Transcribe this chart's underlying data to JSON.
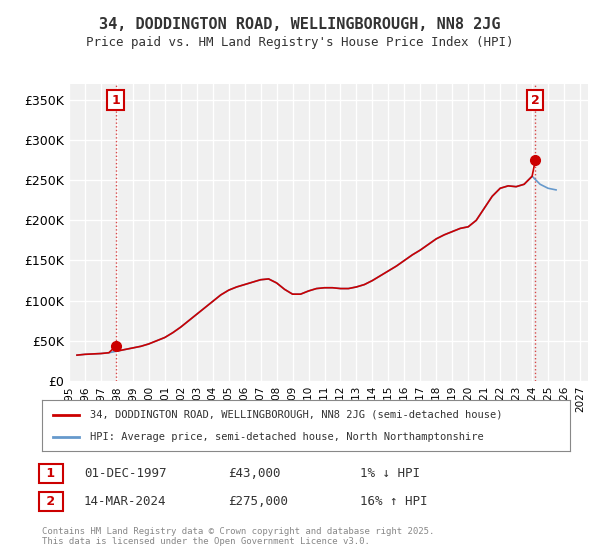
{
  "title_line1": "34, DODDINGTON ROAD, WELLINGBOROUGH, NN8 2JG",
  "title_line2": "Price paid vs. HM Land Registry's House Price Index (HPI)",
  "bg_color": "#ffffff",
  "plot_bg_color": "#f0f0f0",
  "grid_color": "#ffffff",
  "ylim": [
    0,
    370000
  ],
  "yticks": [
    0,
    50000,
    100000,
    150000,
    200000,
    250000,
    300000,
    350000
  ],
  "ytick_labels": [
    "£0",
    "£50K",
    "£100K",
    "£150K",
    "£200K",
    "£250K",
    "£300K",
    "£350K"
  ],
  "xlim_start": 1995.5,
  "xlim_end": 2027.5,
  "xticks": [
    1995,
    1996,
    1997,
    1998,
    1999,
    2000,
    2001,
    2002,
    2003,
    2004,
    2005,
    2006,
    2007,
    2008,
    2009,
    2010,
    2011,
    2012,
    2013,
    2014,
    2015,
    2016,
    2017,
    2018,
    2019,
    2020,
    2021,
    2022,
    2023,
    2024,
    2025,
    2026,
    2027
  ],
  "legend_label1": "34, DODDINGTON ROAD, WELLINGBOROUGH, NN8 2JG (semi-detached house)",
  "legend_label2": "HPI: Average price, semi-detached house, North Northamptonshire",
  "sale1_x": 1997.917,
  "sale1_y": 43000,
  "sale1_label": "1",
  "sale2_x": 2024.2,
  "sale2_y": 275000,
  "sale2_label": "2",
  "annotation1_date": "01-DEC-1997",
  "annotation1_price": "£43,000",
  "annotation1_hpi": "1% ↓ HPI",
  "annotation2_date": "14-MAR-2024",
  "annotation2_price": "£275,000",
  "annotation2_hpi": "16% ↑ HPI",
  "footer": "Contains HM Land Registry data © Crown copyright and database right 2025.\nThis data is licensed under the Open Government Licence v3.0.",
  "line_color_sale": "#cc0000",
  "line_color_hpi": "#6699cc",
  "marker_color": "#cc0000",
  "hpi_data_x": [
    1995.5,
    1996,
    1996.5,
    1997,
    1997.5,
    1998,
    1998.5,
    1999,
    1999.5,
    2000,
    2000.5,
    2001,
    2001.5,
    2002,
    2002.5,
    2003,
    2003.5,
    2004,
    2004.5,
    2005,
    2005.5,
    2006,
    2006.5,
    2007,
    2007.5,
    2008,
    2008.5,
    2009,
    2009.5,
    2010,
    2010.5,
    2011,
    2011.5,
    2012,
    2012.5,
    2013,
    2013.5,
    2014,
    2014.5,
    2015,
    2015.5,
    2016,
    2016.5,
    2017,
    2017.5,
    2018,
    2018.5,
    2019,
    2019.5,
    2020,
    2020.5,
    2021,
    2021.5,
    2022,
    2022.5,
    2023,
    2023.5,
    2024,
    2024.5,
    2025,
    2025.5
  ],
  "hpi_data_y": [
    32000,
    33000,
    33500,
    34000,
    35000,
    37000,
    39000,
    41000,
    43000,
    46000,
    50000,
    54000,
    60000,
    67000,
    75000,
    83000,
    91000,
    99000,
    107000,
    113000,
    117000,
    120000,
    123000,
    126000,
    127000,
    122000,
    114000,
    108000,
    108000,
    112000,
    115000,
    116000,
    116000,
    115000,
    115000,
    117000,
    120000,
    125000,
    131000,
    137000,
    143000,
    150000,
    157000,
    163000,
    170000,
    177000,
    182000,
    186000,
    190000,
    192000,
    200000,
    215000,
    230000,
    240000,
    243000,
    242000,
    245000,
    255000,
    245000,
    240000,
    238000
  ],
  "sold_line_x": [
    1995.5,
    1996,
    1996.5,
    1997,
    1997.5,
    1997.917,
    1998,
    1998.5,
    1999,
    1999.5,
    2000,
    2000.5,
    2001,
    2001.5,
    2002,
    2002.5,
    2003,
    2003.5,
    2004,
    2004.5,
    2005,
    2005.5,
    2006,
    2006.5,
    2007,
    2007.5,
    2008,
    2008.5,
    2009,
    2009.5,
    2010,
    2010.5,
    2011,
    2011.5,
    2012,
    2012.5,
    2013,
    2013.5,
    2014,
    2014.5,
    2015,
    2015.5,
    2016,
    2016.5,
    2017,
    2017.5,
    2018,
    2018.5,
    2019,
    2019.5,
    2020,
    2020.5,
    2021,
    2021.5,
    2022,
    2022.5,
    2023,
    2023.5,
    2024,
    2024.2
  ],
  "sold_line_y": [
    32000,
    33000,
    33500,
    34000,
    35000,
    43000,
    37000,
    39000,
    41000,
    43000,
    46000,
    50000,
    54000,
    60000,
    67000,
    75000,
    83000,
    91000,
    99000,
    107000,
    113000,
    117000,
    120000,
    123000,
    126000,
    127000,
    122000,
    114000,
    108000,
    108000,
    112000,
    115000,
    116000,
    116000,
    115000,
    115000,
    117000,
    120000,
    125000,
    131000,
    137000,
    143000,
    150000,
    157000,
    163000,
    170000,
    177000,
    182000,
    186000,
    190000,
    192000,
    200000,
    215000,
    230000,
    240000,
    243000,
    242000,
    245000,
    255000,
    275000
  ]
}
